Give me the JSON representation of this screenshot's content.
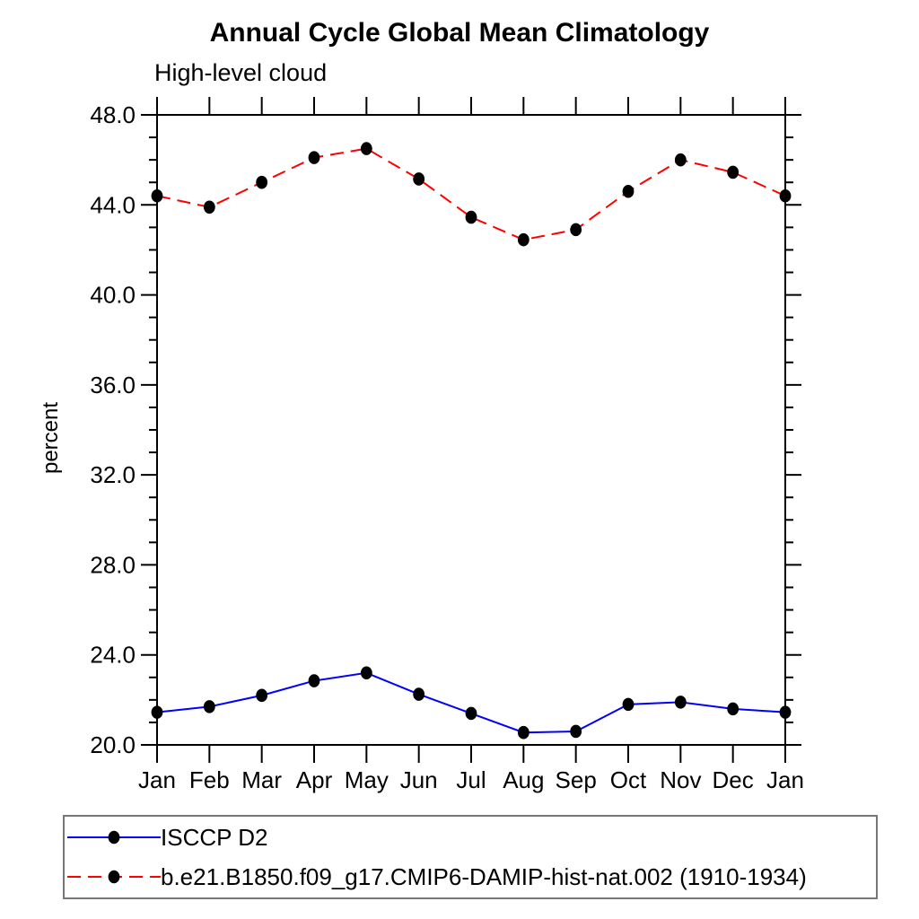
{
  "page": {
    "background": "#ffffff",
    "text_color": "#000000",
    "axis_color": "#000000",
    "legend_border_color": "#777777"
  },
  "chart_data": {
    "type": "line",
    "title": "Annual Cycle Global Mean Climatology",
    "subtitle": "High-level cloud",
    "ylabel": "percent",
    "xlabel": "",
    "x_categories": [
      "Jan",
      "Feb",
      "Mar",
      "Apr",
      "May",
      "Jun",
      "Jul",
      "Aug",
      "Sep",
      "Oct",
      "Nov",
      "Dec",
      "Jan"
    ],
    "ylim": [
      20.0,
      48.0
    ],
    "ytick_major_step": 4.0,
    "ytick_minor_step": 1.0,
    "ytick_labels": [
      "20.0",
      "24.0",
      "28.0",
      "32.0",
      "36.0",
      "40.0",
      "44.0",
      "48.0"
    ],
    "grid": false,
    "legend_position": "bottom-left",
    "series": [
      {
        "name": "ISCCP D2",
        "color": "#0000ff",
        "line_style": "solid",
        "marker": "filled-circle",
        "marker_color": "#000000",
        "values": [
          21.45,
          21.7,
          22.2,
          22.85,
          23.2,
          22.25,
          21.4,
          20.55,
          20.6,
          21.8,
          21.9,
          21.6,
          21.45
        ]
      },
      {
        "name": "b.e21.B1850.f09_g17.CMIP6-DAMIP-hist-nat.002 (1910-1934)",
        "color": "#ff0000",
        "line_style": "dashed",
        "marker": "filled-circle",
        "marker_color": "#000000",
        "values": [
          44.4,
          43.9,
          45.0,
          46.1,
          46.5,
          45.15,
          43.45,
          42.45,
          42.9,
          44.6,
          46.0,
          45.45,
          44.4
        ]
      }
    ]
  }
}
